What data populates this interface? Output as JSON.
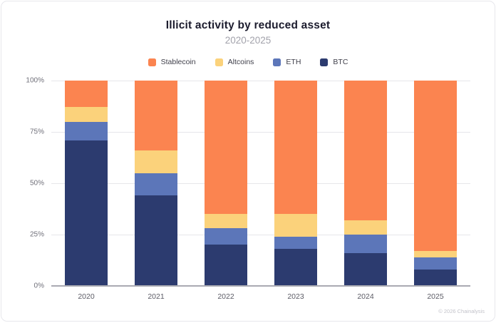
{
  "chart_data": {
    "type": "bar",
    "stacked": true,
    "title": "Illicit activity by reduced asset",
    "subtitle": "2020-2025",
    "categories": [
      "2020",
      "2021",
      "2022",
      "2023",
      "2024",
      "2025"
    ],
    "series": [
      {
        "name": "BTC",
        "color": "#2C3B6F",
        "values": [
          71,
          44,
          20,
          18,
          16,
          8
        ]
      },
      {
        "name": "ETH",
        "color": "#5C76B9",
        "values": [
          9,
          11,
          8,
          6,
          9,
          6
        ]
      },
      {
        "name": "Altcoins",
        "color": "#FBD27B",
        "values": [
          7,
          11,
          7,
          11,
          7,
          3
        ]
      },
      {
        "name": "Stablecoin",
        "color": "#FB8450",
        "values": [
          13,
          34,
          65,
          65,
          68,
          83
        ]
      }
    ],
    "legend_order": [
      "Stablecoin",
      "Altcoins",
      "ETH",
      "BTC"
    ],
    "legend_position": "top",
    "y_ticks": [
      "100%",
      "75%",
      "50%",
      "25%",
      "0%"
    ],
    "ylim": [
      0,
      100
    ],
    "grid": true,
    "xlabel": "",
    "ylabel": ""
  },
  "footer": {
    "copyright": "© 2026 Chainalysis"
  }
}
